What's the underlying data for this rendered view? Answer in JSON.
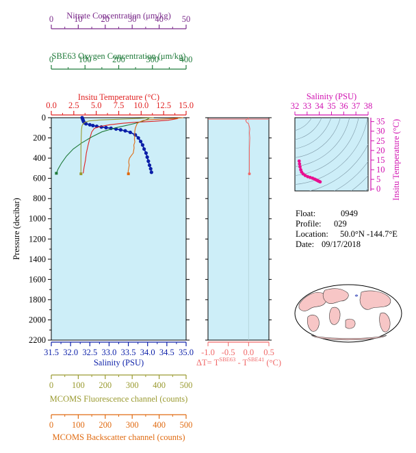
{
  "colors": {
    "nitrate": "#7a2a8a",
    "oxygen": "#1f7a3a",
    "temperature": "#e02020",
    "salinity": "#0b1fa8",
    "fluorescence": "#9a9a30",
    "backscatter": "#e06a10",
    "delta_t": "#f06868",
    "ts_axis": "#d010b0",
    "plot_bg": "#cdeef8"
  },
  "info": {
    "float_label": "Float:",
    "float_value": "0949",
    "profile_label": "Profile:",
    "profile_value": "029",
    "location_label": "Location:",
    "location_value": "50.0°N  -144.7°E",
    "date_label": "Date:",
    "date_value": "09/17/2018"
  },
  "delta_t_label": {
    "prefix": "ΔT= T",
    "sup1": "SBE63",
    "mid": " - T",
    "sup2": "SBE41",
    "suffix": " (°C)"
  },
  "chart_data": [
    {
      "type": "line",
      "name": "main-profile",
      "ylabel": "Pressure (decibar)",
      "ylim": [
        2200,
        0
      ],
      "yticks": [
        0,
        200,
        400,
        600,
        800,
        1000,
        1200,
        1400,
        1600,
        1800,
        2000,
        2200
      ],
      "axes": [
        {
          "key": "nitrate",
          "label": "Nitrate Concentration (μm/kg)",
          "range": [
            0,
            50
          ],
          "ticks": [
            0,
            10,
            20,
            30,
            40,
            50
          ]
        },
        {
          "key": "oxygen",
          "label": "SBE63 Oxygen Concentration (μm/kg)",
          "range": [
            0,
            400
          ],
          "ticks": [
            0,
            100,
            200,
            300,
            400
          ]
        },
        {
          "key": "temperature",
          "label": "Insitu Temperature (°C)",
          "range": [
            0,
            15
          ],
          "ticks": [
            "0.0",
            "2.5",
            "5.0",
            "7.5",
            "10.0",
            "12.5",
            "15.0"
          ]
        },
        {
          "key": "salinity",
          "label": "Salinity (PSU)",
          "range": [
            31.5,
            35
          ],
          "ticks": [
            "31.5",
            "32.0",
            "32.5",
            "33.0",
            "33.5",
            "34.0",
            "34.5",
            "35.0"
          ]
        },
        {
          "key": "fluorescence",
          "label": "MCOMS Fluorescence channel (counts)",
          "range": [
            0,
            500
          ],
          "ticks": [
            0,
            100,
            200,
            300,
            400,
            500
          ]
        },
        {
          "key": "backscatter",
          "label": "MCOMS Backscatter channel (counts)",
          "range": [
            0,
            500
          ],
          "ticks": [
            0,
            100,
            200,
            300,
            400,
            500
          ]
        }
      ],
      "series": [
        {
          "key": "salinity",
          "points": [
            [
              32.3,
              0
            ],
            [
              32.31,
              10
            ],
            [
              32.32,
              20
            ],
            [
              32.33,
              30
            ],
            [
              32.34,
              40
            ],
            [
              32.36,
              50
            ],
            [
              32.4,
              60
            ],
            [
              32.5,
              70
            ],
            [
              32.58,
              78
            ],
            [
              32.68,
              85
            ],
            [
              32.8,
              92
            ],
            [
              32.92,
              98
            ],
            [
              33.05,
              105
            ],
            [
              33.18,
              112
            ],
            [
              33.3,
              120
            ],
            [
              33.42,
              130
            ],
            [
              33.55,
              145
            ],
            [
              33.68,
              170
            ],
            [
              33.76,
              200
            ],
            [
              33.82,
              235
            ],
            [
              33.87,
              270
            ],
            [
              33.91,
              310
            ],
            [
              33.96,
              350
            ],
            [
              33.99,
              390
            ],
            [
              34.02,
              430
            ],
            [
              34.05,
              470
            ],
            [
              34.08,
              505
            ],
            [
              34.1,
              540
            ]
          ]
        },
        {
          "key": "temperature",
          "points": [
            [
              14.2,
              0
            ],
            [
              14.0,
              10
            ],
            [
              13.0,
              25
            ],
            [
              11.5,
              35
            ],
            [
              9.5,
              45
            ],
            [
              8.0,
              55
            ],
            [
              6.5,
              70
            ],
            [
              5.5,
              85
            ],
            [
              4.8,
              105
            ],
            [
              4.5,
              140
            ],
            [
              4.3,
              200
            ],
            [
              4.1,
              270
            ],
            [
              3.9,
              350
            ],
            [
              3.8,
              420
            ],
            [
              3.65,
              490
            ],
            [
              3.55,
              550
            ]
          ]
        },
        {
          "key": "oxygen",
          "points": [
            [
              292,
              0
            ],
            [
              285,
              15
            ],
            [
              270,
              35
            ],
            [
              250,
              55
            ],
            [
              225,
              75
            ],
            [
              190,
              100
            ],
            [
              150,
              140
            ],
            [
              120,
              190
            ],
            [
              90,
              250
            ],
            [
              65,
              310
            ],
            [
              45,
              380
            ],
            [
              30,
              450
            ],
            [
              20,
              510
            ],
            [
              15,
              550
            ]
          ]
        },
        {
          "key": "nitrate",
          "points": []
        },
        {
          "key": "fluorescence",
          "points": [
            [
              380,
              0
            ],
            [
              300,
              10
            ],
            [
              180,
              22
            ],
            [
              140,
              32
            ],
            [
              125,
              45
            ],
            [
              118,
              60
            ],
            [
              114,
              80
            ],
            [
              112,
              120
            ],
            [
              111,
              200
            ],
            [
              110,
              300
            ],
            [
              110,
              400
            ],
            [
              110,
              500
            ],
            [
              110,
              555
            ]
          ]
        },
        {
          "key": "backscatter",
          "points": [
            [
              490,
              0
            ],
            [
              450,
              8
            ],
            [
              395,
              16
            ],
            [
              360,
              20
            ],
            [
              340,
              28
            ],
            [
              330,
              40
            ],
            [
              322,
              50
            ],
            [
              318,
              60
            ],
            [
              315,
              80
            ],
            [
              312,
              100
            ],
            [
              310,
              130
            ],
            [
              309,
              160
            ],
            [
              310,
              180
            ],
            [
              308,
              210
            ],
            [
              310,
              240
            ],
            [
              306,
              270
            ],
            [
              307,
              300
            ],
            [
              305,
              330
            ],
            [
              304,
              350
            ],
            [
              298,
              370
            ],
            [
              294,
              385
            ],
            [
              290,
              400
            ],
            [
              288,
              420
            ],
            [
              287,
              440
            ],
            [
              289,
              470
            ],
            [
              287,
              500
            ],
            [
              285,
              530
            ],
            [
              286,
              555
            ]
          ]
        }
      ]
    },
    {
      "type": "line",
      "name": "delta-t",
      "xlabel": "ΔT= TSBE63 - TSBE41 (°C)",
      "xlim": [
        -1.0,
        0.5
      ],
      "xticks": [
        "-1.0",
        "-0.5",
        "0.0",
        "0.5"
      ],
      "ylim": [
        2200,
        0
      ],
      "series": [
        {
          "name": "ΔT",
          "points": [
            [
              0.0,
              0
            ],
            [
              -0.01,
              10
            ],
            [
              -0.06,
              20
            ],
            [
              -0.07,
              30
            ],
            [
              -0.05,
              45
            ],
            [
              0.0,
              60
            ],
            [
              0.02,
              90
            ],
            [
              0.03,
              110
            ],
            [
              0.02,
              150
            ],
            [
              0.03,
              200
            ],
            [
              0.02,
              300
            ],
            [
              0.02,
              400
            ],
            [
              0.02,
              500
            ],
            [
              0.02,
              555
            ]
          ]
        }
      ]
    },
    {
      "type": "scatter",
      "name": "t-s-diagram",
      "xlabel": "Salinity (PSU)",
      "ylabel": "Insitu Temperature (°C)",
      "xlim": [
        32,
        38
      ],
      "ylim": [
        -1,
        37
      ],
      "xticks": [
        32,
        33,
        34,
        35,
        36,
        37,
        38
      ],
      "yticks": [
        0,
        5,
        10,
        15,
        20,
        25,
        30,
        35
      ],
      "points": [
        [
          32.35,
          14.5
        ],
        [
          32.38,
          13.0
        ],
        [
          32.42,
          11.5
        ],
        [
          32.48,
          10.0
        ],
        [
          32.55,
          8.8
        ],
        [
          32.68,
          7.8
        ],
        [
          32.85,
          7.0
        ],
        [
          33.05,
          6.4
        ],
        [
          33.25,
          6.0
        ],
        [
          33.45,
          5.6
        ],
        [
          33.62,
          5.1
        ],
        [
          33.75,
          4.7
        ],
        [
          33.85,
          4.4
        ],
        [
          33.93,
          4.1
        ],
        [
          34.0,
          3.9
        ],
        [
          34.07,
          3.7
        ]
      ]
    }
  ]
}
